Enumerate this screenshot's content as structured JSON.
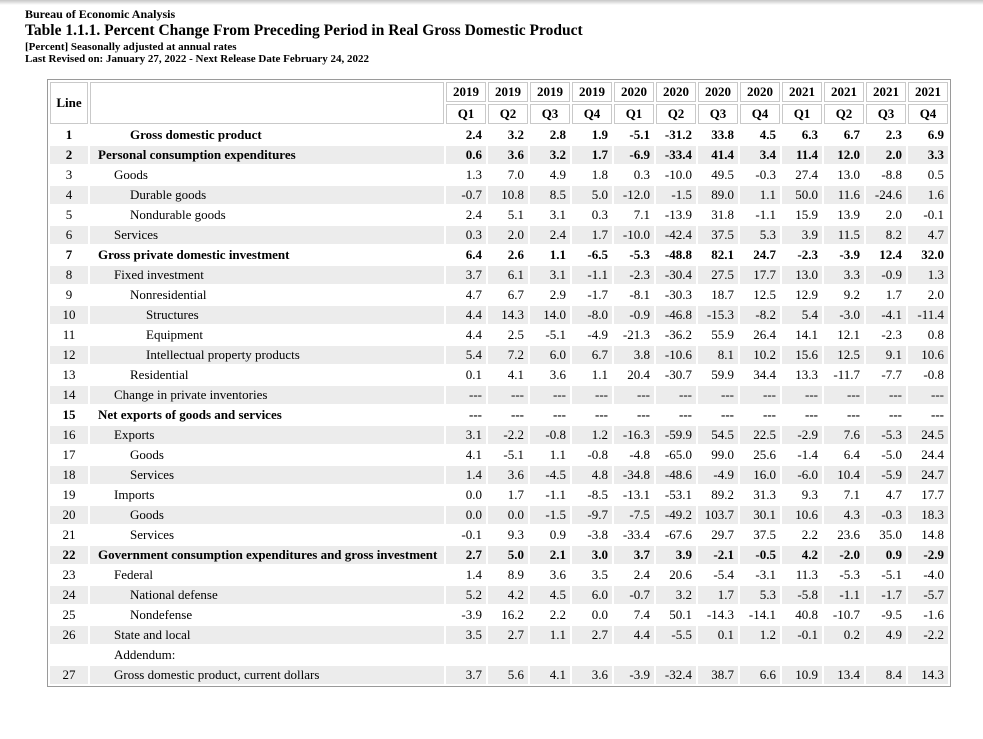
{
  "page": {
    "agency": "Bureau of Economic Analysis",
    "title": "Table 1.1.1. Percent Change From Preceding Period in Real Gross Domestic Product",
    "subtitle": "[Percent] Seasonally adjusted at annual rates",
    "revision": "Last Revised on: January 27, 2022 - Next Release Date February 24, 2022"
  },
  "table": {
    "line_header": "Line",
    "columns": [
      {
        "year": "2019",
        "quarter": "Q1"
      },
      {
        "year": "2019",
        "quarter": "Q2"
      },
      {
        "year": "2019",
        "quarter": "Q3"
      },
      {
        "year": "2019",
        "quarter": "Q4"
      },
      {
        "year": "2020",
        "quarter": "Q1"
      },
      {
        "year": "2020",
        "quarter": "Q2"
      },
      {
        "year": "2020",
        "quarter": "Q3"
      },
      {
        "year": "2020",
        "quarter": "Q4"
      },
      {
        "year": "2021",
        "quarter": "Q1"
      },
      {
        "year": "2021",
        "quarter": "Q2"
      },
      {
        "year": "2021",
        "quarter": "Q3"
      },
      {
        "year": "2021",
        "quarter": "Q4"
      }
    ],
    "rows": [
      {
        "line": "1",
        "label": "Gross domestic product",
        "indent": 2,
        "bold": true,
        "values": [
          "2.4",
          "3.2",
          "2.8",
          "1.9",
          "-5.1",
          "-31.2",
          "33.8",
          "4.5",
          "6.3",
          "6.7",
          "2.3",
          "6.9"
        ]
      },
      {
        "line": "2",
        "label": "Personal consumption expenditures",
        "indent": 0,
        "bold": true,
        "values": [
          "0.6",
          "3.6",
          "3.2",
          "1.7",
          "-6.9",
          "-33.4",
          "41.4",
          "3.4",
          "11.4",
          "12.0",
          "2.0",
          "3.3"
        ]
      },
      {
        "line": "3",
        "label": "Goods",
        "indent": 1,
        "bold": false,
        "values": [
          "1.3",
          "7.0",
          "4.9",
          "1.8",
          "0.3",
          "-10.0",
          "49.5",
          "-0.3",
          "27.4",
          "13.0",
          "-8.8",
          "0.5"
        ]
      },
      {
        "line": "4",
        "label": "Durable goods",
        "indent": 2,
        "bold": false,
        "values": [
          "-0.7",
          "10.8",
          "8.5",
          "5.0",
          "-12.0",
          "-1.5",
          "89.0",
          "1.1",
          "50.0",
          "11.6",
          "-24.6",
          "1.6"
        ]
      },
      {
        "line": "5",
        "label": "Nondurable goods",
        "indent": 2,
        "bold": false,
        "values": [
          "2.4",
          "5.1",
          "3.1",
          "0.3",
          "7.1",
          "-13.9",
          "31.8",
          "-1.1",
          "15.9",
          "13.9",
          "2.0",
          "-0.1"
        ]
      },
      {
        "line": "6",
        "label": "Services",
        "indent": 1,
        "bold": false,
        "values": [
          "0.3",
          "2.0",
          "2.4",
          "1.7",
          "-10.0",
          "-42.4",
          "37.5",
          "5.3",
          "3.9",
          "11.5",
          "8.2",
          "4.7"
        ]
      },
      {
        "line": "7",
        "label": "Gross private domestic investment",
        "indent": 0,
        "bold": true,
        "values": [
          "6.4",
          "2.6",
          "1.1",
          "-6.5",
          "-5.3",
          "-48.8",
          "82.1",
          "24.7",
          "-2.3",
          "-3.9",
          "12.4",
          "32.0"
        ]
      },
      {
        "line": "8",
        "label": "Fixed investment",
        "indent": 1,
        "bold": false,
        "values": [
          "3.7",
          "6.1",
          "3.1",
          "-1.1",
          "-2.3",
          "-30.4",
          "27.5",
          "17.7",
          "13.0",
          "3.3",
          "-0.9",
          "1.3"
        ]
      },
      {
        "line": "9",
        "label": "Nonresidential",
        "indent": 2,
        "bold": false,
        "values": [
          "4.7",
          "6.7",
          "2.9",
          "-1.7",
          "-8.1",
          "-30.3",
          "18.7",
          "12.5",
          "12.9",
          "9.2",
          "1.7",
          "2.0"
        ]
      },
      {
        "line": "10",
        "label": "Structures",
        "indent": 3,
        "bold": false,
        "values": [
          "4.4",
          "14.3",
          "14.0",
          "-8.0",
          "-0.9",
          "-46.8",
          "-15.3",
          "-8.2",
          "5.4",
          "-3.0",
          "-4.1",
          "-11.4"
        ]
      },
      {
        "line": "11",
        "label": "Equipment",
        "indent": 3,
        "bold": false,
        "values": [
          "4.4",
          "2.5",
          "-5.1",
          "-4.9",
          "-21.3",
          "-36.2",
          "55.9",
          "26.4",
          "14.1",
          "12.1",
          "-2.3",
          "0.8"
        ]
      },
      {
        "line": "12",
        "label": "Intellectual property products",
        "indent": 3,
        "bold": false,
        "values": [
          "5.4",
          "7.2",
          "6.0",
          "6.7",
          "3.8",
          "-10.6",
          "8.1",
          "10.2",
          "15.6",
          "12.5",
          "9.1",
          "10.6"
        ]
      },
      {
        "line": "13",
        "label": "Residential",
        "indent": 2,
        "bold": false,
        "values": [
          "0.1",
          "4.1",
          "3.6",
          "1.1",
          "20.4",
          "-30.7",
          "59.9",
          "34.4",
          "13.3",
          "-11.7",
          "-7.7",
          "-0.8"
        ]
      },
      {
        "line": "14",
        "label": "Change in private inventories",
        "indent": 1,
        "bold": false,
        "values": [
          "---",
          "---",
          "---",
          "---",
          "---",
          "---",
          "---",
          "---",
          "---",
          "---",
          "---",
          "---"
        ]
      },
      {
        "line": "15",
        "label": "Net exports of goods and services",
        "indent": 0,
        "bold": true,
        "values": [
          "---",
          "---",
          "---",
          "---",
          "---",
          "---",
          "---",
          "---",
          "---",
          "---",
          "---",
          "---"
        ]
      },
      {
        "line": "16",
        "label": "Exports",
        "indent": 1,
        "bold": false,
        "values": [
          "3.1",
          "-2.2",
          "-0.8",
          "1.2",
          "-16.3",
          "-59.9",
          "54.5",
          "22.5",
          "-2.9",
          "7.6",
          "-5.3",
          "24.5"
        ]
      },
      {
        "line": "17",
        "label": "Goods",
        "indent": 2,
        "bold": false,
        "values": [
          "4.1",
          "-5.1",
          "1.1",
          "-0.8",
          "-4.8",
          "-65.0",
          "99.0",
          "25.6",
          "-1.4",
          "6.4",
          "-5.0",
          "24.4"
        ]
      },
      {
        "line": "18",
        "label": "Services",
        "indent": 2,
        "bold": false,
        "values": [
          "1.4",
          "3.6",
          "-4.5",
          "4.8",
          "-34.8",
          "-48.6",
          "-4.9",
          "16.0",
          "-6.0",
          "10.4",
          "-5.9",
          "24.7"
        ]
      },
      {
        "line": "19",
        "label": "Imports",
        "indent": 1,
        "bold": false,
        "values": [
          "0.0",
          "1.7",
          "-1.1",
          "-8.5",
          "-13.1",
          "-53.1",
          "89.2",
          "31.3",
          "9.3",
          "7.1",
          "4.7",
          "17.7"
        ]
      },
      {
        "line": "20",
        "label": "Goods",
        "indent": 2,
        "bold": false,
        "values": [
          "0.0",
          "0.0",
          "-1.5",
          "-9.7",
          "-7.5",
          "-49.2",
          "103.7",
          "30.1",
          "10.6",
          "4.3",
          "-0.3",
          "18.3"
        ]
      },
      {
        "line": "21",
        "label": "Services",
        "indent": 2,
        "bold": false,
        "values": [
          "-0.1",
          "9.3",
          "0.9",
          "-3.8",
          "-33.4",
          "-67.6",
          "29.7",
          "37.5",
          "2.2",
          "23.6",
          "35.0",
          "14.8"
        ]
      },
      {
        "line": "22",
        "label": "Government consumption expenditures and gross investment",
        "indent": 0,
        "bold": true,
        "values": [
          "2.7",
          "5.0",
          "2.1",
          "3.0",
          "3.7",
          "3.9",
          "-2.1",
          "-0.5",
          "4.2",
          "-2.0",
          "0.9",
          "-2.9"
        ]
      },
      {
        "line": "23",
        "label": "Federal",
        "indent": 1,
        "bold": false,
        "values": [
          "1.4",
          "8.9",
          "3.6",
          "3.5",
          "2.4",
          "20.6",
          "-5.4",
          "-3.1",
          "11.3",
          "-5.3",
          "-5.1",
          "-4.0"
        ]
      },
      {
        "line": "24",
        "label": "National defense",
        "indent": 2,
        "bold": false,
        "values": [
          "5.2",
          "4.2",
          "4.5",
          "6.0",
          "-0.7",
          "3.2",
          "1.7",
          "5.3",
          "-5.8",
          "-1.1",
          "-1.7",
          "-5.7"
        ]
      },
      {
        "line": "25",
        "label": "Nondefense",
        "indent": 2,
        "bold": false,
        "values": [
          "-3.9",
          "16.2",
          "2.2",
          "0.0",
          "7.4",
          "50.1",
          "-14.3",
          "-14.1",
          "40.8",
          "-10.7",
          "-9.5",
          "-1.6"
        ]
      },
      {
        "line": "26",
        "label": "State and local",
        "indent": 1,
        "bold": false,
        "values": [
          "3.5",
          "2.7",
          "1.1",
          "2.7",
          "4.4",
          "-5.5",
          "0.1",
          "1.2",
          "-0.1",
          "0.2",
          "4.9",
          "-2.2"
        ]
      },
      {
        "line": "",
        "label": "Addendum:",
        "indent": 1,
        "bold": false,
        "values": [
          "",
          "",
          "",
          "",
          "",
          "",
          "",
          "",
          "",
          "",
          "",
          ""
        ]
      },
      {
        "line": "27",
        "label": "Gross domestic product, current dollars",
        "indent": 1,
        "bold": false,
        "values": [
          "3.7",
          "5.6",
          "4.1",
          "3.6",
          "-3.9",
          "-32.4",
          "38.7",
          "6.6",
          "10.9",
          "13.4",
          "8.4",
          "14.3"
        ]
      }
    ],
    "colors": {
      "row_shade": "#ececec",
      "cell_border": "#c9c9c9",
      "outer_border": "#9a9a9a",
      "text": "#000000"
    }
  }
}
